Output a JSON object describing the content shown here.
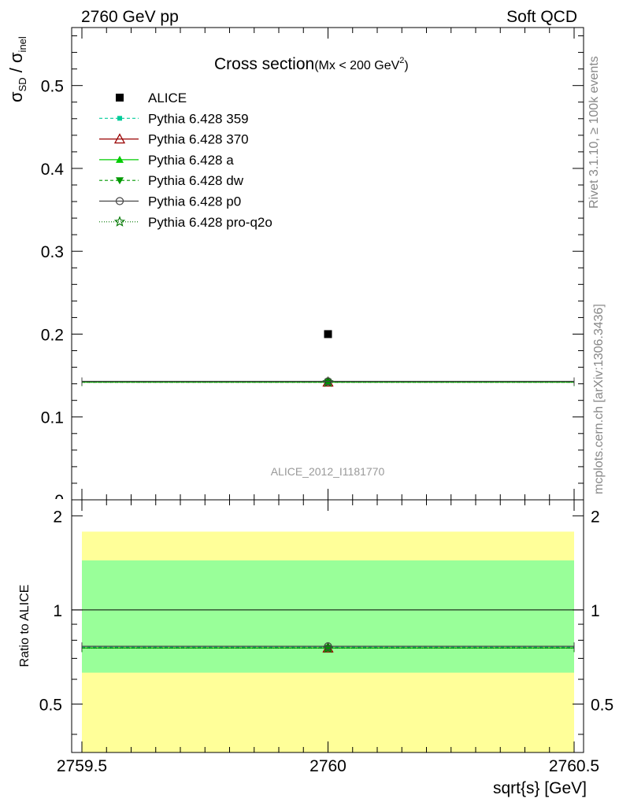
{
  "header": {
    "left": "2760 GeV pp",
    "right": "Soft QCD"
  },
  "side_text": {
    "rivet": "Rivet 3.1.10, ≥ 100k events",
    "mcplots": "mcplots.cern.ch [arXiv:1306.3436]"
  },
  "colors": {
    "band_outer": "#ffff99",
    "band_inner": "#99ff99",
    "p359": "#00cc99",
    "p370": "#990000",
    "pa": "#00cc00",
    "pdw": "#009900",
    "pp0": "#444444",
    "pq2o": "#007700"
  },
  "chart_data": [
    {
      "type": "scatter",
      "title": "Cross section",
      "title_suffix": "(Mx < 200 GeV",
      "title_sup": "2",
      "title_close": ")",
      "ylabel_main": "σ",
      "ylabel_sub1": "SD",
      "ylabel_sep": " / σ",
      "ylabel_sub2": "inel",
      "watermark": "ALICE_2012_I1181770",
      "xlim": [
        2759.5,
        2760.5
      ],
      "ylim": [
        0,
        0.57
      ],
      "yticks": [
        "0.1",
        "0.2",
        "0.3",
        "0.4",
        "0.5"
      ],
      "ytick_values": [
        0.1,
        0.2,
        0.3,
        0.4,
        0.5
      ],
      "y0_label": "0",
      "legend_position": "top-left",
      "series": [
        {
          "name": "ALICE",
          "key": "alice",
          "x": [
            2760
          ],
          "y": [
            0.2
          ],
          "xerr": [
            0
          ],
          "marker": "filled-square"
        },
        {
          "name": "Pythia 6.428 359",
          "key": "p359",
          "x": [
            2760
          ],
          "y": [
            0.142
          ],
          "xerr": [
            0.5
          ],
          "marker": "small-square",
          "dash": "4,3"
        },
        {
          "name": "Pythia 6.428 370",
          "key": "p370",
          "x": [
            2760
          ],
          "y": [
            0.142
          ],
          "xerr": [
            0.5
          ],
          "marker": "open-triangle",
          "dash": ""
        },
        {
          "name": "Pythia 6.428 a",
          "key": "pa",
          "x": [
            2760
          ],
          "y": [
            0.142
          ],
          "xerr": [
            0.5
          ],
          "marker": "filled-triangle",
          "dash": ""
        },
        {
          "name": "Pythia 6.428 dw",
          "key": "pdw",
          "x": [
            2760
          ],
          "y": [
            0.142
          ],
          "xerr": [
            0.5
          ],
          "marker": "filled-triangle-down",
          "dash": "4,3"
        },
        {
          "name": "Pythia 6.428 p0",
          "key": "pp0",
          "x": [
            2760
          ],
          "y": [
            0.143
          ],
          "xerr": [
            0.5
          ],
          "marker": "open-circle",
          "dash": ""
        },
        {
          "name": "Pythia 6.428 pro-q2o",
          "key": "pq2o",
          "x": [
            2760
          ],
          "y": [
            0.142
          ],
          "xerr": [
            0.5
          ],
          "marker": "open-star",
          "dash": "1,2"
        }
      ]
    },
    {
      "type": "scatter",
      "title": "",
      "xlabel": "sqrt{s} [GeV]",
      "ylabel": "Ratio to ALICE",
      "xlim": [
        2759.5,
        2760.5
      ],
      "ylim": [
        0.35,
        2.25
      ],
      "xticks": [
        "2759.5",
        "2760",
        "2760.5"
      ],
      "xtick_values": [
        2759.5,
        2760,
        2760.5
      ],
      "yticks": [
        "0.5",
        "1",
        "2"
      ],
      "ytick_values": [
        0.5,
        1,
        2
      ],
      "reference_line": 1,
      "bands": {
        "inner": [
          0.63,
          1.44
        ],
        "outer": [
          0.35,
          1.78
        ]
      },
      "series": [
        {
          "name": "Pythia 6.428 359",
          "key": "p359",
          "x": [
            2760
          ],
          "y": [
            0.76
          ]
        },
        {
          "name": "Pythia 6.428 370",
          "key": "p370",
          "x": [
            2760
          ],
          "y": [
            0.755
          ]
        },
        {
          "name": "Pythia 6.428 a",
          "key": "pa",
          "x": [
            2760
          ],
          "y": [
            0.755
          ]
        },
        {
          "name": "Pythia 6.428 dw",
          "key": "pdw",
          "x": [
            2760
          ],
          "y": [
            0.755
          ]
        },
        {
          "name": "Pythia 6.428 p0",
          "key": "pp0",
          "x": [
            2760
          ],
          "y": [
            0.765
          ]
        },
        {
          "name": "Pythia 6.428 pro-q2o",
          "key": "pq2o",
          "x": [
            2760
          ],
          "y": [
            0.755
          ]
        }
      ]
    }
  ]
}
